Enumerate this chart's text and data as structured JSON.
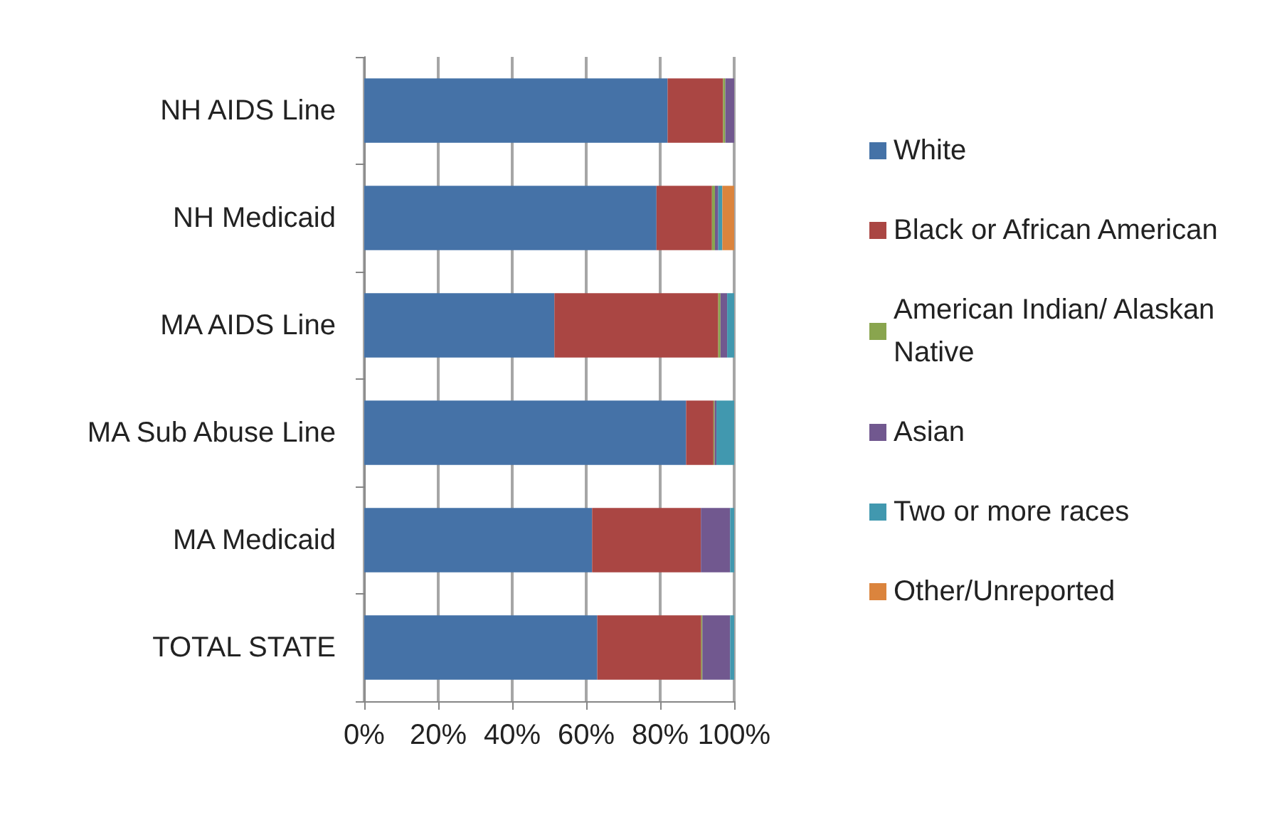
{
  "chart_data": {
    "type": "bar",
    "orientation": "horizontal",
    "stacked": true,
    "categories": [
      "NH AIDS Line",
      "NH Medicaid",
      "MA AIDS Line",
      "MA Sub Abuse Line",
      "MA Medicaid",
      "TOTAL STATE"
    ],
    "series": [
      {
        "name": "White",
        "color": "#4572a7",
        "values": [
          82,
          79,
          51.4,
          87,
          61.6,
          63
        ]
      },
      {
        "name": "Black or African American",
        "color": "#aa4643",
        "values": [
          15,
          15,
          44.3,
          7.4,
          29.4,
          28.1
        ]
      },
      {
        "name": "American Indian/ Alaskan Native",
        "color": "#89a54e",
        "values": [
          0.6,
          0.8,
          0.6,
          0.3,
          0,
          0.3
        ]
      },
      {
        "name": "Asian",
        "color": "#71588f",
        "values": [
          2.4,
          0.9,
          1.8,
          0.5,
          7.9,
          7.5
        ]
      },
      {
        "name": "Two or more races",
        "color": "#4198af",
        "values": [
          0,
          1.1,
          1.9,
          4.8,
          1.1,
          1.1
        ]
      },
      {
        "name": "Other/Unreported",
        "color": "#db843d",
        "values": [
          0,
          3.2,
          0,
          0,
          0,
          0
        ]
      }
    ],
    "xlim": [
      0,
      100
    ],
    "xticks": [
      {
        "value": 0,
        "label": "0%"
      },
      {
        "value": 20,
        "label": "20%"
      },
      {
        "value": 40,
        "label": "40%"
      },
      {
        "value": 60,
        "label": "60%"
      },
      {
        "value": 80,
        "label": "80%"
      },
      {
        "value": 100,
        "label": "100%"
      }
    ],
    "grid": "x",
    "legend": "right"
  }
}
